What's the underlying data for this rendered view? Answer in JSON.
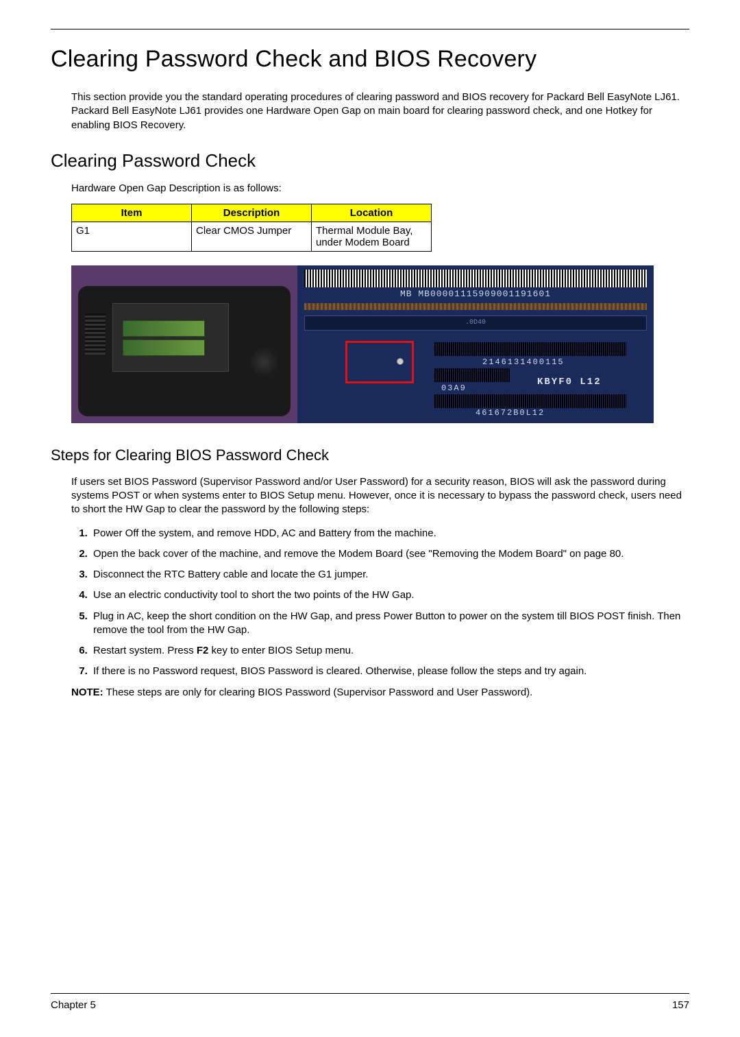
{
  "page": {
    "chapter_label": "Chapter 5",
    "page_number": "157"
  },
  "title": "Clearing Password Check and BIOS Recovery",
  "intro": "This section provide you the standard operating procedures of clearing password and BIOS recovery for Packard Bell EasyNote LJ61. Packard Bell EasyNote LJ61 provides one Hardware Open Gap on main board for clearing password check, and one Hotkey for enabling BIOS Recovery.",
  "section1": {
    "heading": "Clearing Password Check",
    "lead": "Hardware Open Gap Description is as follows:",
    "table": {
      "headers": {
        "c1": "Item",
        "c2": "Description",
        "c3": "Location"
      },
      "row": {
        "c1": "G1",
        "c2": "Clear CMOS Jumper",
        "c3": "Thermal Module Bay, under Modem Board"
      }
    },
    "label_panel": {
      "mb_line": "MB        MB00001115909001191601",
      "chip": ".0D40",
      "code1": "2146131400115",
      "code2": "03A9",
      "code3": "KBYF0 L12",
      "code4": "461672B0L12"
    }
  },
  "section2": {
    "heading": "Steps for Clearing BIOS Password Check",
    "body": "If users set BIOS Password (Supervisor Password and/or User Password) for a security reason, BIOS will ask the password during systems POST or when systems enter to BIOS Setup menu. However, once it is necessary to bypass the password check, users need to short the HW Gap to clear the password by the following steps:",
    "steps": {
      "s1": "Power Off the system, and remove HDD, AC and Battery from the machine.",
      "s2": "Open the back cover of the machine, and remove the Modem Board (see \"Removing the Modem Board\" on page 80.",
      "s3": "Disconnect the RTC Battery cable and locate the G1 jumper.",
      "s4": "Use an electric conductivity tool to short the two points of the HW Gap.",
      "s5": "Plug in AC, keep the short condition on the HW Gap, and press Power Button to power on the system till BIOS POST finish. Then remove the tool from the HW Gap.",
      "s6_pre": "Restart system. Press ",
      "s6_key": "F2",
      "s6_post": " key to enter BIOS Setup menu.",
      "s7": "If there is no Password request, BIOS Password is cleared. Otherwise, please follow the steps and try again."
    },
    "note_label": "NOTE:",
    "note_text": " These steps are only for clearing BIOS Password (Supervisor Password and User Password)."
  }
}
